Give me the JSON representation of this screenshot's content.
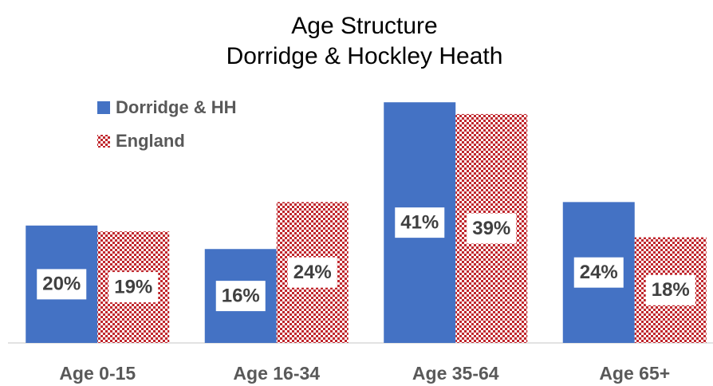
{
  "chart_data": {
    "type": "bar",
    "title": [
      "Age  Structure",
      "Dorridge  & Hockley Heath"
    ],
    "categories": [
      "Age 0-15",
      "Age 16-34",
      "Age 35-64",
      "Age 65+"
    ],
    "series": [
      {
        "name": "Dorridge & HH",
        "color": "#4472c4",
        "values": [
          20,
          16,
          41,
          24
        ],
        "value_labels": [
          "20%",
          "16%",
          "41%",
          "24%"
        ]
      },
      {
        "name": "England",
        "color": "#c0272d",
        "pattern": "checkered",
        "values": [
          19,
          24,
          39,
          18
        ],
        "value_labels": [
          "19%",
          "24%",
          "39%",
          "18%"
        ]
      }
    ],
    "legend": "top-left"
  }
}
